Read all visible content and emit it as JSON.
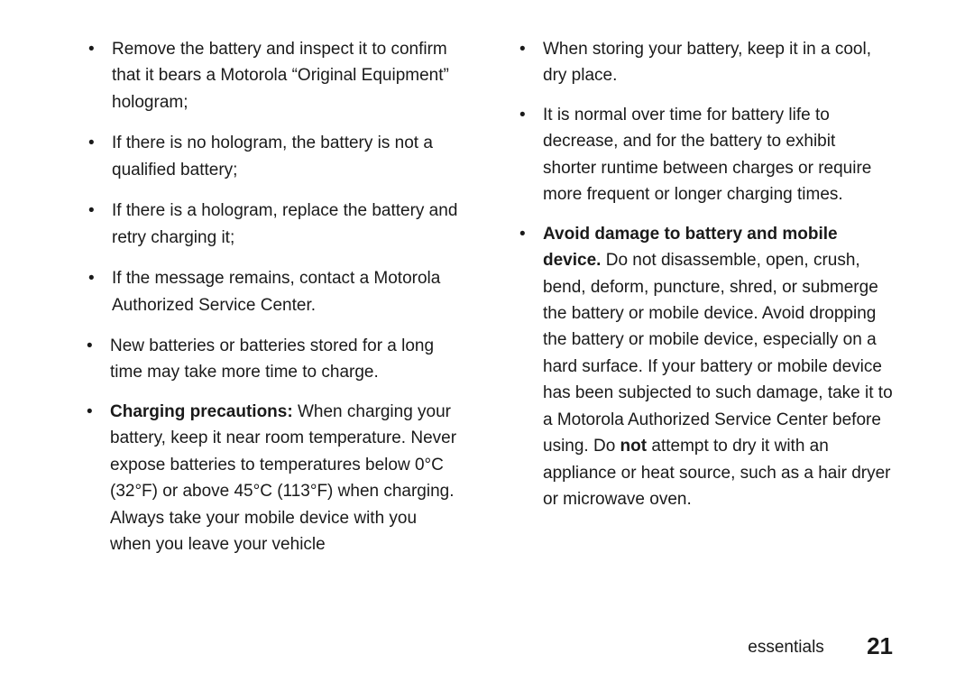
{
  "left": {
    "sub": [
      "Remove the battery and inspect it to confirm that it bears a Motorola “Original Equipment” hologram;",
      "If there is no hologram, the battery is not a qualified battery;",
      "If there is a hologram, replace the battery and retry charging it;",
      "If the message remains, contact a Motorola Authorized Service Center."
    ],
    "b1": "New batteries or batteries stored for a long time may take more time to charge.",
    "b2_bold": "Charging precautions:",
    "b2_rest": " When charging your battery, keep it near room temperature. Never expose batteries to temperatures below 0°C (32°F) or above 45°C (113°F) when charging. Always take your mobile device with you when you leave your vehicle"
  },
  "right": {
    "b1": "When storing your battery, keep it in a cool, dry place.",
    "b2": "It is normal over time for battery life to decrease, and for the battery to exhibit shorter runtime between charges or require more frequent or longer charging times.",
    "b3_bold": "Avoid damage to battery and mobile device.",
    "b3_mid": " Do not disassemble, open, crush, bend, deform, puncture, shred, or submerge the battery or mobile device. Avoid dropping the battery or mobile device, especially on a hard surface. If your battery or mobile device has been subjected to such damage, take it to a Motorola Authorized Service Center before using. Do ",
    "b3_not": "not",
    "b3_end": " attempt to dry it with an appliance or heat source, such as a hair dryer or microwave oven."
  },
  "footer": {
    "section": "essentials",
    "page": "21"
  }
}
